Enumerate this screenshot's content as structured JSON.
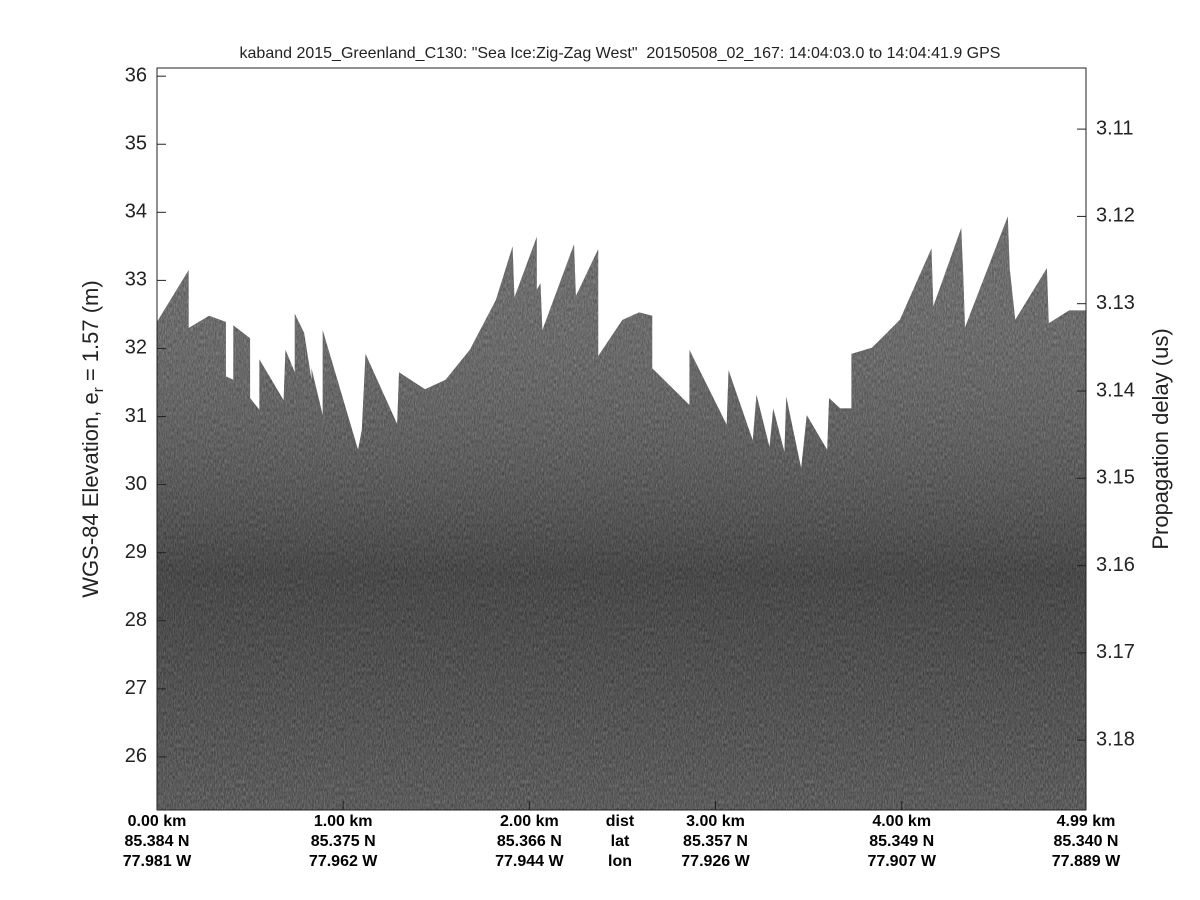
{
  "chart_data": {
    "type": "echogram",
    "title": "kaband 2015_Greenland_C130: \"Sea Ice:Zig-Zag West\"  20150508_02_167: 14:04:03.0 to 14:04:41.9 GPS",
    "ylabel": [
      "WGS-84 Elevation, e",
      "r",
      " = 1.57 (m)"
    ],
    "y2label": "Propagation delay (us)",
    "xlim": [
      0,
      4.99
    ],
    "xticks": [
      {
        "value": 0,
        "label": "0.00 km"
      },
      {
        "value": 1,
        "label": "1.00 km"
      },
      {
        "value": 2,
        "label": "2.00 km"
      },
      {
        "value": 3,
        "label": "3.00 km"
      },
      {
        "value": 4,
        "label": "4.00 km"
      },
      {
        "value": 4.99,
        "label": "4.99 km"
      }
    ],
    "lat_labels": [
      "85.384 N",
      "85.375 N",
      "85.366 N",
      "85.357 N",
      "85.349 N",
      "85.340 N"
    ],
    "lon_labels": [
      "77.981 W",
      "77.962 W",
      "77.944 W",
      "77.926 W",
      "77.907 W",
      "77.889 W"
    ],
    "row_labels": [
      "dist",
      "lat",
      "lon"
    ],
    "ylim": [
      25.22,
      36.12
    ],
    "yticks": [
      26,
      27,
      28,
      29,
      30,
      31,
      32,
      33,
      34,
      35,
      36
    ],
    "y2lim": [
      3.188,
      3.103
    ],
    "y2ticks": [
      3.11,
      3.12,
      3.13,
      3.14,
      3.15,
      3.16,
      3.17,
      3.18
    ],
    "color": "#3a3a3a",
    "x": [
      0.0,
      0.17,
      0.17,
      0.28,
      0.37,
      0.37,
      0.41,
      0.41,
      0.5,
      0.5,
      0.55,
      0.55,
      0.68,
      0.69,
      0.74,
      0.74,
      0.79,
      0.83,
      0.83,
      0.89,
      0.89,
      1.08,
      1.1,
      1.12,
      1.29,
      1.3,
      1.44,
      1.55,
      1.68,
      1.82,
      1.91,
      1.92,
      2.04,
      2.04,
      2.06,
      2.07,
      2.24,
      2.25,
      2.37,
      2.37,
      2.5,
      2.59,
      2.66,
      2.66,
      2.86,
      2.86,
      3.06,
      3.07,
      3.2,
      3.22,
      3.29,
      3.31,
      3.37,
      3.38,
      3.46,
      3.49,
      3.6,
      3.61,
      3.67,
      3.73,
      3.73,
      3.84,
      3.99,
      4.16,
      4.17,
      4.32,
      4.33,
      4.34,
      4.57,
      4.58,
      4.61,
      4.78,
      4.79,
      4.9,
      4.99
    ],
    "values": [
      32.39,
      33.15,
      32.3,
      32.48,
      32.39,
      31.59,
      31.54,
      32.34,
      32.15,
      31.27,
      31.1,
      31.84,
      31.24,
      31.98,
      31.65,
      32.51,
      32.23,
      31.54,
      31.71,
      31.02,
      32.27,
      30.51,
      30.8,
      31.92,
      30.89,
      31.65,
      31.4,
      31.54,
      31.98,
      32.71,
      33.5,
      32.75,
      33.64,
      32.86,
      32.96,
      32.27,
      33.53,
      32.77,
      33.46,
      31.89,
      32.42,
      32.53,
      32.48,
      31.71,
      31.17,
      31.98,
      30.88,
      31.68,
      30.65,
      31.32,
      30.55,
      31.12,
      30.48,
      31.29,
      30.24,
      31.02,
      30.51,
      31.27,
      31.12,
      31.12,
      31.92,
      32.01,
      32.42,
      33.47,
      32.62,
      33.77,
      33.12,
      32.31,
      33.94,
      33.18,
      32.42,
      33.18,
      32.37,
      32.56,
      32.56
    ]
  }
}
